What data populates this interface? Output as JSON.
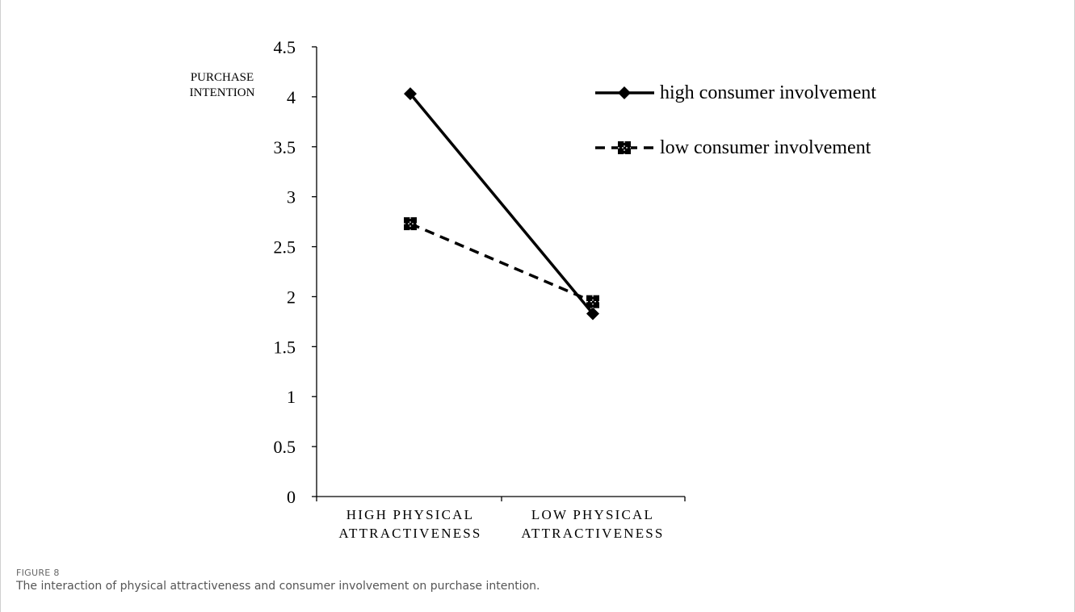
{
  "figure": {
    "label": "FIGURE 8",
    "caption": "The interaction of physical attractiveness and consumer involvement on purchase intention."
  },
  "chart_data": {
    "type": "line",
    "title": "",
    "ylabel": [
      "PURCHASE",
      "INTENTION"
    ],
    "xlabel": "",
    "ylim": [
      0,
      4.5
    ],
    "yticks": [
      "0",
      "0.5",
      "1",
      "1.5",
      "2",
      "2.5",
      "3",
      "3.5",
      "4",
      "4.5"
    ],
    "categories": [
      [
        "HIGH PHYSICAL",
        "ATTRACTIVENESS"
      ],
      [
        "LOW PHYSICAL",
        "ATTRACTIVENESS"
      ]
    ],
    "series": [
      {
        "name": "high consumer involvement",
        "values": [
          4.03,
          1.83
        ],
        "line_style": "solid",
        "marker": "diamond",
        "color": "#000000"
      },
      {
        "name": "low consumer involvement",
        "values": [
          2.73,
          1.95
        ],
        "line_style": "dashed",
        "marker": "square",
        "color": "#000000"
      }
    ],
    "legend_position": "top-right",
    "grid": false
  }
}
